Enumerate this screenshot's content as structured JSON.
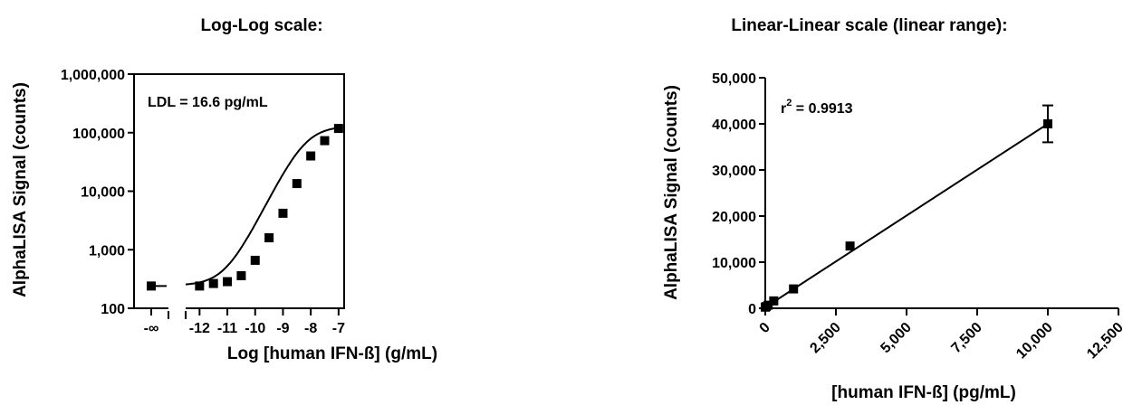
{
  "chart_data": [
    {
      "type": "line",
      "title": "Log-Log scale:",
      "xlabel": "Log [human IFN-ß] (g/mL)",
      "ylabel": "AlphaLISA Signal (counts)",
      "y_scale": "log",
      "ylim": [
        100,
        1000000
      ],
      "xlim": [
        -12.5,
        -6.8
      ],
      "y_ticks": [
        100,
        1000,
        10000,
        100000,
        1000000
      ],
      "y_tick_labels": [
        "100",
        "1,000",
        "10,000",
        "100,000",
        "1,000,000"
      ],
      "x_ticks": [
        -12,
        -11,
        -10,
        -9,
        -8,
        -7
      ],
      "x_tick_labels": [
        "-12",
        "-11",
        "-10",
        "-9",
        "-8",
        "-7"
      ],
      "x_break_label": "-∞",
      "annotation": "LDL = 16.6 pg/mL",
      "background_point": {
        "x_label": "-∞",
        "y": 240,
        "y_low": 225,
        "y_high": 270
      },
      "series": [
        {
          "x": [
            -12,
            -11.5,
            -11,
            -10.5,
            -10,
            -9.5,
            -9,
            -8.5,
            -8,
            -7.5,
            -7
          ],
          "y": [
            240,
            265,
            285,
            360,
            660,
            1600,
            4200,
            13500,
            40000,
            73000,
            118000
          ]
        }
      ],
      "fit_curve": {
        "type": "4PL",
        "bottom": 245,
        "top": 130000,
        "log_ec50": -8.2,
        "hill": 0.95
      },
      "grid": false
    },
    {
      "type": "scatter",
      "title": "Linear-Linear scale (linear range):",
      "xlabel": "[human IFN-ß] (pg/mL)",
      "ylabel": "AlphaLISA Signal (counts)",
      "xlim": [
        0,
        12500
      ],
      "ylim": [
        0,
        50000
      ],
      "x_ticks": [
        0,
        2500,
        5000,
        7500,
        10000,
        12500
      ],
      "x_tick_labels": [
        "0",
        "2,500",
        "5,000",
        "7,500",
        "10,000",
        "12,500"
      ],
      "y_ticks": [
        0,
        10000,
        20000,
        30000,
        40000,
        50000
      ],
      "y_tick_labels": [
        "0",
        "10,000",
        "20,000",
        "30,000",
        "40,000",
        "50,000"
      ],
      "annotation_base": "r",
      "annotation_sup": "2",
      "annotation_rest": " = 0.9913",
      "series": [
        {
          "x": [
            0,
            30,
            100,
            300,
            1000,
            3000,
            10000
          ],
          "y": [
            240,
            360,
            660,
            1600,
            4200,
            13500,
            40000
          ],
          "error": [
            0,
            0,
            0,
            0,
            0,
            0,
            4000
          ]
        }
      ],
      "fit_line": {
        "x0": 0,
        "y0": 200,
        "x1": 10000,
        "y1": 40000
      },
      "grid": false
    }
  ]
}
